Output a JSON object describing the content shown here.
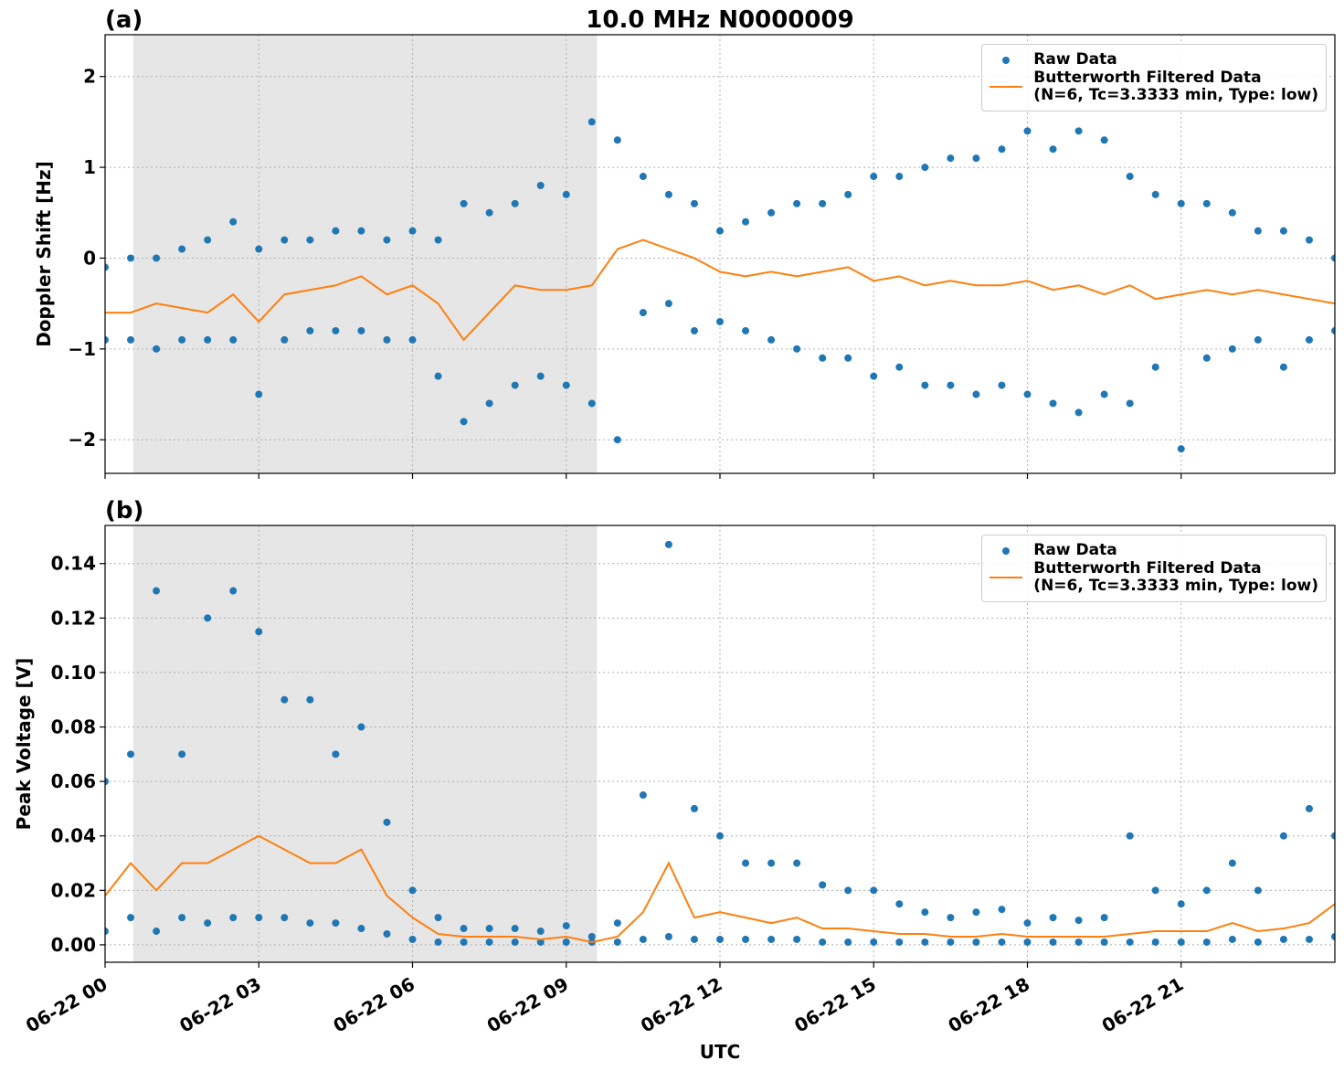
{
  "chart_data": [
    {
      "type": "line",
      "title": "10.0 MHz N0000009",
      "panel_label": "(a)",
      "ylabel": "Doppler Shift [Hz]",
      "xlim": [
        0,
        24
      ],
      "xticks": [
        0,
        3,
        6,
        9,
        12,
        15,
        18,
        21
      ],
      "ylim": [
        -2.37,
        2.46
      ],
      "yticks": [
        {
          "value": -2,
          "label": "−2"
        },
        {
          "value": -1,
          "label": "−1"
        },
        0,
        1,
        2
      ],
      "grid": true,
      "legend": "upper right",
      "shaded_span": [
        0.55,
        9.6
      ],
      "series": [
        {
          "name": "Raw Data",
          "style": "markers",
          "color": "#1f77b4",
          "x": [
            0,
            0.5,
            1,
            1.5,
            2,
            2.5,
            3,
            3.5,
            4,
            4.5,
            5,
            5.5,
            6,
            6.5,
            7,
            7.5,
            8,
            8.5,
            9,
            9.5,
            10,
            10.5,
            11,
            11.5,
            12,
            12.5,
            13,
            13.5,
            14,
            14.5,
            15,
            15.5,
            16,
            16.5,
            17,
            17.5,
            18,
            18.5,
            19,
            19.5,
            20,
            20.5,
            21,
            21.5,
            22,
            22.5,
            23,
            23.5,
            24,
            0,
            0.5,
            1,
            1.5,
            2,
            2.5,
            3,
            3.5,
            4,
            4.5,
            5,
            5.5,
            6,
            6.5,
            7,
            7.5,
            8,
            8.5,
            9,
            9.5,
            10,
            10.5,
            11,
            11.5,
            12,
            12.5,
            13,
            13.5,
            14,
            14.5,
            15,
            15.5,
            16,
            16.5,
            17,
            17.5,
            18,
            18.5,
            19,
            19.5,
            20,
            20.5,
            21,
            21.5,
            22,
            22.5,
            23,
            23.5,
            24
          ],
          "values": [
            -0.1,
            0,
            0,
            0.1,
            0.2,
            0.4,
            0.1,
            0.2,
            0.2,
            0.3,
            0.3,
            0.2,
            0.3,
            0.2,
            0.6,
            0.5,
            0.6,
            0.8,
            0.7,
            1.5,
            1.3,
            0.9,
            0.7,
            0.6,
            0.3,
            0.4,
            0.5,
            0.6,
            0.6,
            0.7,
            0.9,
            0.9,
            1,
            1.1,
            1.1,
            1.2,
            1.4,
            1.2,
            1.4,
            1.3,
            0.9,
            0.7,
            0.6,
            0.6,
            0.5,
            0.3,
            0.3,
            0.2,
            0,
            -0.9,
            -0.9,
            -1,
            -0.9,
            -0.9,
            -0.9,
            -1.5,
            -0.9,
            -0.8,
            -0.8,
            -0.8,
            -0.9,
            -0.9,
            -1.3,
            -1.8,
            -1.6,
            -1.4,
            -1.3,
            -1.4,
            -1.6,
            -2,
            -0.6,
            -0.5,
            -0.8,
            -0.7,
            -0.8,
            -0.9,
            -1,
            -1.1,
            -1.1,
            -1.3,
            -1.2,
            -1.4,
            -1.4,
            -1.5,
            -1.4,
            -1.5,
            -1.6,
            -1.7,
            -1.5,
            -1.6,
            -1.2,
            -2.1,
            -1.1,
            -1,
            -0.9,
            -1.2,
            -0.9,
            -0.8
          ]
        },
        {
          "name": "Butterworth Filtered Data\n(N=6, Tc=3.3333 min, Type: low)",
          "style": "line",
          "color": "#ff7f0e",
          "x": [
            0,
            0.5,
            1,
            1.5,
            2,
            2.5,
            3,
            3.5,
            4,
            4.5,
            5,
            5.5,
            6,
            6.5,
            7,
            7.5,
            8,
            8.5,
            9,
            9.5,
            10,
            10.5,
            11,
            11.5,
            12,
            12.5,
            13,
            13.5,
            14,
            14.5,
            15,
            15.5,
            16,
            16.5,
            17,
            17.5,
            18,
            18.5,
            19,
            19.5,
            20,
            20.5,
            21,
            21.5,
            22,
            22.5,
            23,
            23.5,
            24
          ],
          "values": [
            -0.6,
            -0.6,
            -0.5,
            -0.55,
            -0.6,
            -0.4,
            -0.7,
            -0.4,
            -0.35,
            -0.3,
            -0.2,
            -0.4,
            -0.3,
            -0.5,
            -0.9,
            -0.6,
            -0.3,
            -0.35,
            -0.35,
            -0.3,
            0.1,
            0.2,
            0.1,
            0,
            -0.15,
            -0.2,
            -0.15,
            -0.2,
            -0.15,
            -0.1,
            -0.25,
            -0.2,
            -0.3,
            -0.25,
            -0.3,
            -0.3,
            -0.25,
            -0.35,
            -0.3,
            -0.4,
            -0.3,
            -0.45,
            -0.4,
            -0.35,
            -0.4,
            -0.35,
            -0.4,
            -0.45,
            -0.5
          ]
        }
      ]
    },
    {
      "type": "line",
      "panel_label": "(b)",
      "ylabel": "Peak Voltage [V]",
      "xlabel": "UTC",
      "xlim": [
        0,
        24
      ],
      "xticks": [
        {
          "value": 0,
          "label": "06-22 00"
        },
        {
          "value": 3,
          "label": "06-22 03"
        },
        {
          "value": 6,
          "label": "06-22 06"
        },
        {
          "value": 9,
          "label": "06-22 09"
        },
        {
          "value": 12,
          "label": "06-22 12"
        },
        {
          "value": 15,
          "label": "06-22 15"
        },
        {
          "value": 18,
          "label": "06-22 18"
        },
        {
          "value": 21,
          "label": "06-22 21"
        }
      ],
      "ylim": [
        -0.0064,
        0.154
      ],
      "yticks": [
        {
          "value": 0,
          "label": "0.00"
        },
        0.02,
        0.04,
        0.06,
        0.08,
        {
          "value": 0.1,
          "label": "0.10"
        },
        0.12,
        0.14
      ],
      "grid": true,
      "legend": "upper right",
      "shaded_span": [
        0.55,
        9.6
      ],
      "series": [
        {
          "name": "Raw Data",
          "style": "markers",
          "color": "#1f77b4",
          "x": [
            0,
            0.5,
            1,
            1.5,
            2,
            2.5,
            3,
            3.5,
            4,
            4.5,
            5,
            5.5,
            6,
            6.5,
            7,
            7.5,
            8,
            8.5,
            9,
            9.5,
            10,
            10.5,
            11,
            11.5,
            12,
            12.5,
            13,
            13.5,
            14,
            14.5,
            15,
            15.5,
            16,
            16.5,
            17,
            17.5,
            18,
            18.5,
            19,
            19.5,
            20,
            20.5,
            21,
            21.5,
            22,
            22.5,
            23,
            23.5,
            24,
            0,
            0.5,
            1,
            1.5,
            2,
            2.5,
            3,
            3.5,
            4,
            4.5,
            5,
            5.5,
            6,
            6.5,
            7,
            7.5,
            8,
            8.5,
            9,
            9.5,
            10,
            10.5,
            11,
            11.5,
            12,
            12.5,
            13,
            13.5,
            14,
            14.5,
            15,
            15.5,
            16,
            16.5,
            17,
            17.5,
            18,
            18.5,
            19,
            19.5,
            20,
            20.5,
            21,
            21.5,
            22,
            22.5,
            23,
            23.5,
            24
          ],
          "values": [
            0.06,
            0.07,
            0.13,
            0.07,
            0.12,
            0.13,
            0.115,
            0.09,
            0.09,
            0.07,
            0.08,
            0.045,
            0.02,
            0.01,
            0.006,
            0.006,
            0.006,
            0.005,
            0.007,
            0.003,
            0.008,
            0.055,
            0.147,
            0.05,
            0.04,
            0.03,
            0.03,
            0.03,
            0.022,
            0.02,
            0.02,
            0.015,
            0.012,
            0.01,
            0.012,
            0.013,
            0.008,
            0.01,
            0.009,
            0.01,
            0.04,
            0.02,
            0.015,
            0.02,
            0.03,
            0.02,
            0.04,
            0.05,
            0.04,
            0.005,
            0.01,
            0.005,
            0.01,
            0.008,
            0.01,
            0.01,
            0.01,
            0.008,
            0.008,
            0.006,
            0.004,
            0.002,
            0.001,
            0.001,
            0.001,
            0.001,
            0.001,
            0.001,
            0.001,
            0.001,
            0.002,
            0.003,
            0.002,
            0.002,
            0.002,
            0.002,
            0.002,
            0.001,
            0.001,
            0.001,
            0.001,
            0.001,
            0.001,
            0.001,
            0.001,
            0.001,
            0.001,
            0.001,
            0.001,
            0.001,
            0.001,
            0.001,
            0.001,
            0.002,
            0.001,
            0.002,
            0.002,
            0.003
          ]
        },
        {
          "name": "Butterworth Filtered Data\n(N=6, Tc=3.3333 min, Type: low)",
          "style": "line",
          "color": "#ff7f0e",
          "x": [
            0,
            0.5,
            1,
            1.5,
            2,
            2.5,
            3,
            3.5,
            4,
            4.5,
            5,
            5.5,
            6,
            6.5,
            7,
            7.5,
            8,
            8.5,
            9,
            9.5,
            10,
            10.5,
            11,
            11.5,
            12,
            12.5,
            13,
            13.5,
            14,
            14.5,
            15,
            15.5,
            16,
            16.5,
            17,
            17.5,
            18,
            18.5,
            19,
            19.5,
            20,
            20.5,
            21,
            21.5,
            22,
            22.5,
            23,
            23.5,
            24
          ],
          "values": [
            0.018,
            0.03,
            0.02,
            0.03,
            0.03,
            0.035,
            0.04,
            0.035,
            0.03,
            0.03,
            0.035,
            0.018,
            0.01,
            0.004,
            0.003,
            0.003,
            0.003,
            0.002,
            0.003,
            0.001,
            0.003,
            0.012,
            0.03,
            0.01,
            0.012,
            0.01,
            0.008,
            0.01,
            0.006,
            0.006,
            0.005,
            0.004,
            0.004,
            0.003,
            0.003,
            0.004,
            0.003,
            0.003,
            0.003,
            0.003,
            0.004,
            0.005,
            0.005,
            0.005,
            0.008,
            0.005,
            0.006,
            0.008,
            0.015
          ]
        }
      ]
    }
  ]
}
